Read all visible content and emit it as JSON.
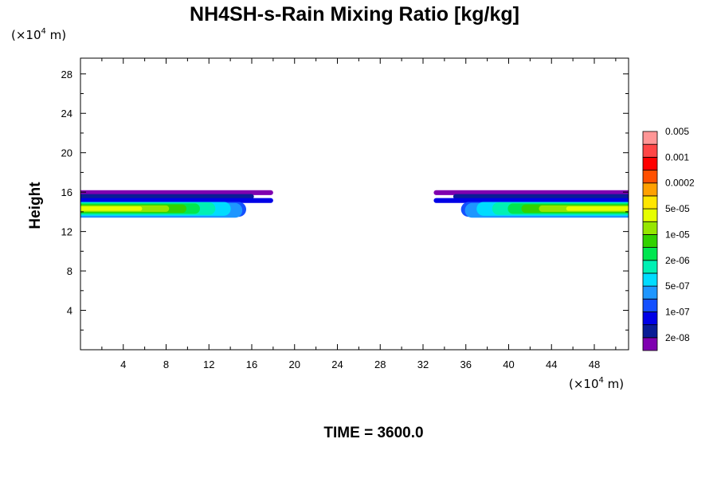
{
  "chart_data": {
    "type": "contour",
    "title": "NH4SH-s-Rain Mixing Ratio [kg/kg]",
    "ylabel": "Height",
    "x_unit_prefix": "(×10",
    "x_unit_exp": "4",
    "x_unit_suffix": " m)",
    "y_unit_prefix": "(×10",
    "y_unit_exp": "4",
    "y_unit_suffix": " m)",
    "xlim": [
      0,
      51.2
    ],
    "ylim": [
      0,
      29.6
    ],
    "x_ticks": [
      "4",
      "8",
      "12",
      "16",
      "20",
      "24",
      "28",
      "32",
      "36",
      "40",
      "44",
      "48"
    ],
    "y_ticks": [
      "4",
      "8",
      "12",
      "16",
      "20",
      "24",
      "28"
    ],
    "colorbar": {
      "colors": [
        "#7f00b0",
        "#0a1c96",
        "#0000e6",
        "#1450ff",
        "#1e96ff",
        "#00dcff",
        "#00f0b4",
        "#00e650",
        "#32d200",
        "#96e600",
        "#e6ff00",
        "#ffe600",
        "#ffa000",
        "#ff5000",
        "#ff0000",
        "#ff4646",
        "#ff9696"
      ],
      "labels": [
        "2e-08",
        "1e-07",
        "5e-07",
        "2e-06",
        "1e-05",
        "5e-05",
        "0.0002",
        "0.001",
        "0.005"
      ]
    },
    "time_label": "TIME = 3600.0",
    "fields": [
      {
        "x_range": [
          0,
          18
        ],
        "y_range": [
          13.4,
          16.2
        ],
        "peak_y": 14.3
      },
      {
        "x_range": [
          33,
          51.2
        ],
        "y_range": [
          13.4,
          16.2
        ],
        "peak_y": 14.3
      }
    ]
  }
}
